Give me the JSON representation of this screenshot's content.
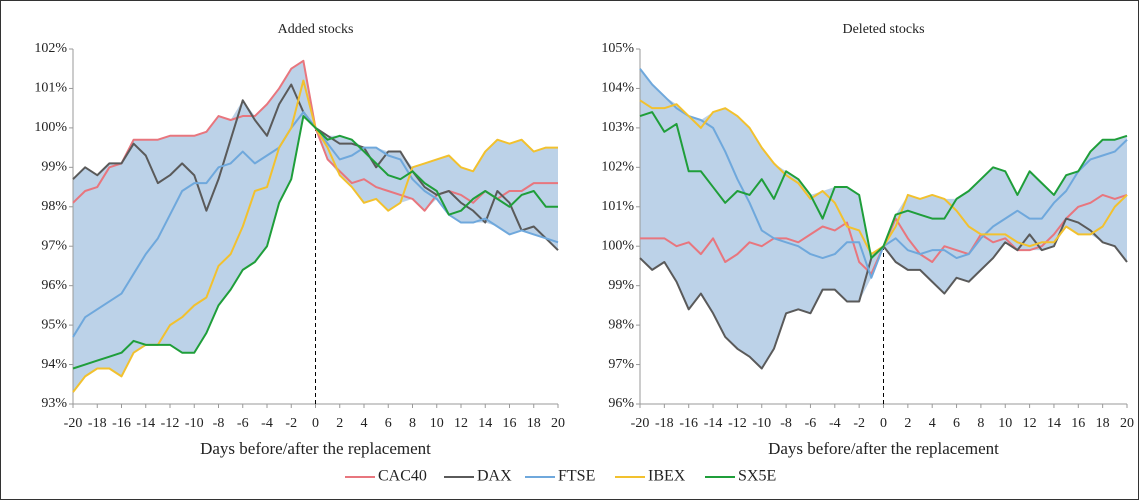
{
  "chart_data": [
    {
      "type": "line",
      "title": "Added stocks",
      "xlabel": "Days before/after the replacement",
      "x": [
        -20,
        -19,
        -18,
        -17,
        -16,
        -15,
        -14,
        -13,
        -12,
        -11,
        -10,
        -9,
        -8,
        -7,
        -6,
        -5,
        -4,
        -3,
        -2,
        -1,
        0,
        1,
        2,
        3,
        4,
        5,
        6,
        7,
        8,
        9,
        10,
        11,
        12,
        13,
        14,
        15,
        16,
        17,
        18,
        19,
        20
      ],
      "xlim": [
        -20,
        20
      ],
      "xticks": [
        -20,
        -18,
        -16,
        -14,
        -12,
        -10,
        -8,
        -6,
        -4,
        -2,
        0,
        2,
        4,
        6,
        8,
        10,
        12,
        14,
        16,
        18,
        20
      ],
      "ylim": [
        93,
        102
      ],
      "yticks": [
        {
          "value": 93,
          "label": "93%"
        },
        {
          "value": 94,
          "label": "94%"
        },
        {
          "value": 95,
          "label": "95%"
        },
        {
          "value": 96,
          "label": "96%"
        },
        {
          "value": 97,
          "label": "97%"
        },
        {
          "value": 98,
          "label": "98%"
        },
        {
          "value": 99,
          "label": "99%"
        },
        {
          "value": 100,
          "label": "100%"
        },
        {
          "value": 101,
          "label": "101%"
        },
        {
          "value": 102,
          "label": "102%"
        }
      ],
      "band_color": "#bcd2e8",
      "series": [
        {
          "name": "CAC40",
          "color": "#e8767e",
          "values": [
            98.1,
            98.4,
            98.5,
            99.0,
            99.1,
            99.7,
            99.7,
            99.7,
            99.8,
            99.8,
            99.8,
            99.9,
            100.3,
            100.2,
            100.3,
            100.3,
            100.6,
            101.0,
            101.5,
            101.7,
            100.0,
            99.2,
            98.9,
            98.6,
            98.7,
            98.5,
            98.4,
            98.3,
            98.2,
            97.9,
            98.3,
            98.4,
            98.3,
            98.1,
            98.4,
            98.2,
            98.4,
            98.4,
            98.6,
            98.6,
            98.6
          ]
        },
        {
          "name": "DAX",
          "color": "#5a5a5a",
          "values": [
            98.7,
            99.0,
            98.8,
            99.1,
            99.1,
            99.6,
            99.3,
            98.6,
            98.8,
            99.1,
            98.8,
            97.9,
            98.7,
            99.7,
            100.7,
            100.2,
            99.8,
            100.6,
            101.1,
            100.4,
            100.0,
            99.8,
            99.6,
            99.6,
            99.5,
            99.0,
            99.4,
            99.4,
            98.9,
            98.5,
            98.3,
            98.4,
            98.1,
            97.9,
            97.6,
            98.4,
            98.1,
            97.4,
            97.5,
            97.2,
            96.9
          ]
        },
        {
          "name": "FTSE",
          "color": "#6fa8dc",
          "values": [
            94.7,
            95.2,
            95.4,
            95.6,
            95.8,
            96.3,
            96.8,
            97.2,
            97.8,
            98.4,
            98.6,
            98.6,
            99.0,
            99.1,
            99.4,
            99.1,
            99.3,
            99.5,
            100.0,
            100.4,
            100.0,
            99.6,
            99.2,
            99.3,
            99.5,
            99.5,
            99.3,
            99.2,
            98.7,
            98.4,
            98.2,
            97.8,
            97.6,
            97.6,
            97.7,
            97.5,
            97.3,
            97.4,
            97.3,
            97.2,
            97.1
          ]
        },
        {
          "name": "IBEX",
          "color": "#f2c12e",
          "values": [
            93.3,
            93.7,
            93.9,
            93.9,
            93.7,
            94.3,
            94.5,
            94.5,
            95.0,
            95.2,
            95.5,
            95.7,
            96.5,
            96.8,
            97.5,
            98.4,
            98.5,
            99.5,
            100.0,
            101.2,
            100.0,
            99.5,
            98.8,
            98.5,
            98.1,
            98.2,
            97.9,
            98.1,
            99.0,
            99.1,
            99.2,
            99.3,
            99.0,
            98.9,
            99.4,
            99.7,
            99.6,
            99.7,
            99.4,
            99.5,
            99.5
          ]
        },
        {
          "name": "SX5E",
          "color": "#1f9e3a",
          "values": [
            93.9,
            94.0,
            94.1,
            94.2,
            94.3,
            94.6,
            94.5,
            94.5,
            94.5,
            94.3,
            94.3,
            94.8,
            95.5,
            95.9,
            96.4,
            96.6,
            97.0,
            98.1,
            98.7,
            100.3,
            100.0,
            99.7,
            99.8,
            99.7,
            99.4,
            99.1,
            98.8,
            98.7,
            98.9,
            98.6,
            98.4,
            97.8,
            97.9,
            98.2,
            98.4,
            98.2,
            98.0,
            98.3,
            98.4,
            98.0,
            98.0
          ]
        }
      ]
    },
    {
      "type": "line",
      "title": "Deleted stocks",
      "xlabel": "Days before/after the replacement",
      "x": [
        -20,
        -19,
        -18,
        -17,
        -16,
        -15,
        -14,
        -13,
        -12,
        -11,
        -10,
        -9,
        -8,
        -7,
        -6,
        -5,
        -4,
        -3,
        -2,
        -1,
        0,
        1,
        2,
        3,
        4,
        5,
        6,
        7,
        8,
        9,
        10,
        11,
        12,
        13,
        14,
        15,
        16,
        17,
        18,
        19,
        20
      ],
      "xlim": [
        -20,
        20
      ],
      "xticks": [
        -20,
        -18,
        -16,
        -14,
        -12,
        -10,
        -8,
        -6,
        -4,
        -2,
        0,
        2,
        4,
        6,
        8,
        10,
        12,
        14,
        16,
        18,
        20
      ],
      "ylim": [
        96,
        105
      ],
      "yticks": [
        {
          "value": 96,
          "label": "96%"
        },
        {
          "value": 97,
          "label": "97%"
        },
        {
          "value": 98,
          "label": "98%"
        },
        {
          "value": 99,
          "label": "99%"
        },
        {
          "value": 100,
          "label": "100%"
        },
        {
          "value": 101,
          "label": "101%"
        },
        {
          "value": 102,
          "label": "102%"
        },
        {
          "value": 103,
          "label": "103%"
        },
        {
          "value": 104,
          "label": "104%"
        },
        {
          "value": 105,
          "label": "105%"
        }
      ],
      "band_color": "#bcd2e8",
      "series": [
        {
          "color": "#e8767e",
          "values": [
            100.2,
            100.2,
            100.2,
            100.0,
            100.1,
            99.8,
            100.2,
            99.6,
            99.8,
            100.1,
            100.0,
            100.2,
            100.2,
            100.1,
            100.3,
            100.5,
            100.4,
            100.6,
            99.6,
            99.3,
            100.0,
            100.7,
            100.2,
            99.8,
            99.6,
            100.0,
            99.9,
            99.8,
            100.3,
            100.1,
            100.2,
            99.9,
            99.9,
            100.0,
            100.3,
            100.7,
            101.0,
            101.1,
            101.3,
            101.2,
            101.3
          ]
        },
        {
          "color": "#5a5a5a",
          "values": [
            99.7,
            99.4,
            99.6,
            99.1,
            98.4,
            98.8,
            98.3,
            97.7,
            97.4,
            97.2,
            96.9,
            97.4,
            98.3,
            98.4,
            98.3,
            98.9,
            98.9,
            98.6,
            98.6,
            99.7,
            100.0,
            99.6,
            99.4,
            99.4,
            99.1,
            98.8,
            99.2,
            99.1,
            99.4,
            99.7,
            100.1,
            99.9,
            100.3,
            99.9,
            100.0,
            100.7,
            100.6,
            100.4,
            100.1,
            100.0,
            99.6
          ]
        },
        {
          "color": "#6fa8dc",
          "values": [
            104.5,
            104.1,
            103.8,
            103.5,
            103.3,
            103.2,
            103.0,
            102.4,
            101.7,
            101.1,
            100.4,
            100.2,
            100.1,
            100.0,
            99.8,
            99.7,
            99.8,
            100.1,
            100.1,
            99.2,
            100.0,
            100.2,
            99.9,
            99.8,
            99.9,
            99.9,
            99.7,
            99.8,
            100.2,
            100.5,
            100.7,
            100.9,
            100.7,
            100.7,
            101.1,
            101.4,
            101.9,
            102.2,
            102.3,
            102.4,
            102.7
          ]
        },
        {
          "color": "#f2c12e",
          "values": [
            103.7,
            103.5,
            103.5,
            103.6,
            103.3,
            103.0,
            103.4,
            103.5,
            103.3,
            103.0,
            102.5,
            102.1,
            101.8,
            101.6,
            101.2,
            101.4,
            101.1,
            100.5,
            100.4,
            99.8,
            100.0,
            100.5,
            101.3,
            101.2,
            101.3,
            101.2,
            100.9,
            100.5,
            100.3,
            100.3,
            100.3,
            100.1,
            100.0,
            100.1,
            100.1,
            100.5,
            100.3,
            100.3,
            100.5,
            101.0,
            101.3
          ]
        },
        {
          "color": "#1f9e3a",
          "values": [
            103.3,
            103.4,
            102.9,
            103.1,
            101.9,
            101.9,
            101.5,
            101.1,
            101.4,
            101.3,
            101.7,
            101.2,
            101.9,
            101.7,
            101.3,
            100.7,
            101.5,
            101.5,
            101.3,
            99.7,
            100.0,
            100.8,
            100.9,
            100.8,
            100.7,
            100.7,
            101.2,
            101.4,
            101.7,
            102.0,
            101.9,
            101.3,
            101.9,
            101.6,
            101.3,
            101.8,
            101.9,
            102.4,
            102.7,
            102.7,
            102.8
          ]
        }
      ]
    }
  ]
}
